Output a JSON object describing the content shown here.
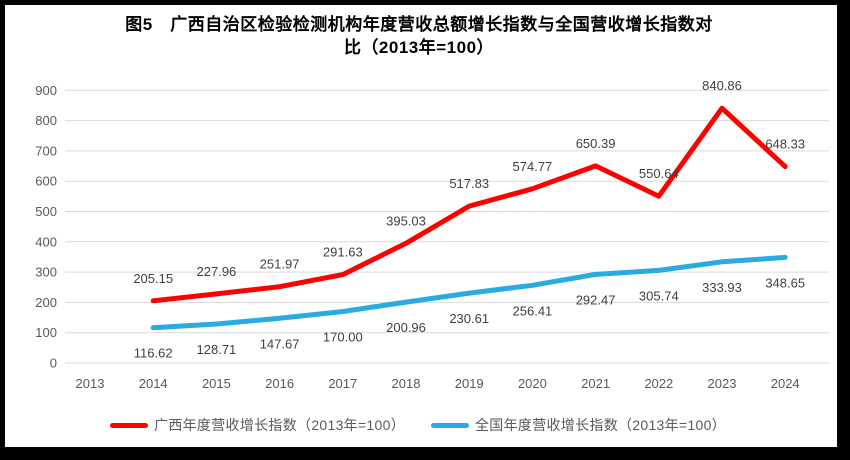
{
  "figure": {
    "title_line1": "图5　广西自治区检验检测机构年度营收总额增长指数与全国营收增长指数对",
    "title_line2": "比（2013年=100）"
  },
  "chart_data": {
    "type": "line",
    "title": "图5 广西自治区检验检测机构年度营收总额增长指数与全国营收增长指数对比（2013年=100）",
    "categories": [
      "2013",
      "2014",
      "2015",
      "2016",
      "2017",
      "2018",
      "2019",
      "2020",
      "2021",
      "2022",
      "2023",
      "2024"
    ],
    "series": [
      {
        "name": "广西年度营收增长指数（2013年=100）",
        "color": "#FE0000",
        "label_position": "above",
        "values": [
          null,
          205.15,
          227.96,
          251.97,
          291.63,
          395.03,
          517.83,
          574.77,
          650.39,
          550.64,
          840.86,
          648.33
        ]
      },
      {
        "name": "全国年度营收增长指数（2013年=100）",
        "color": "#29ABE2",
        "label_position": "below",
        "values": [
          null,
          116.62,
          128.71,
          147.67,
          170.0,
          200.96,
          230.61,
          256.41,
          292.47,
          305.74,
          333.93,
          348.65
        ]
      }
    ],
    "ylim": [
      0,
      900
    ],
    "ytick_step": 100,
    "grid": true,
    "legend_position": "bottom",
    "gridline_color": "#D9D9D9",
    "tick_label_color": "#595959",
    "data_label_color": "#404040"
  }
}
